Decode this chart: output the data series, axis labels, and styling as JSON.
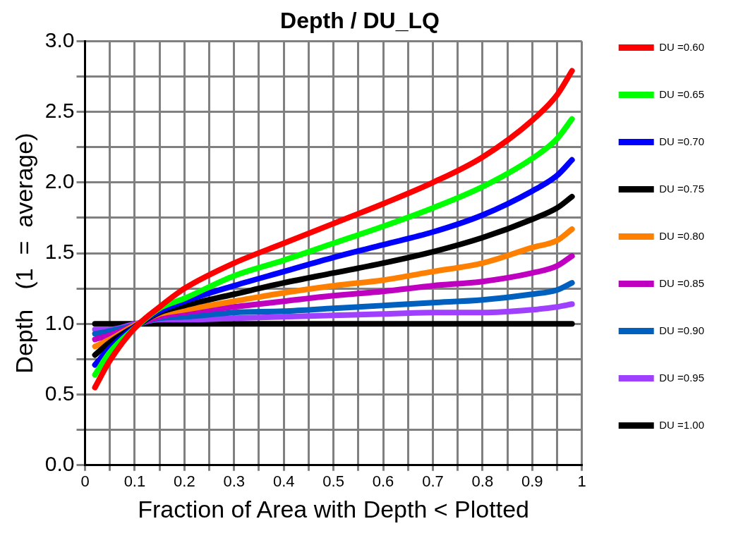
{
  "chart_data": {
    "type": "line",
    "title": "Depth / DU_LQ",
    "xlabel": "Fraction of Area with Depth < Plotted",
    "ylabel": "Depth   (1  =  average)",
    "x": [
      0.02,
      0.05,
      0.1,
      0.15,
      0.2,
      0.3,
      0.4,
      0.5,
      0.6,
      0.7,
      0.8,
      0.9,
      0.95,
      0.98
    ],
    "xlim": [
      0,
      1
    ],
    "xticks": [
      {
        "value": 0,
        "label": "0"
      },
      {
        "value": 0.05,
        "label": null
      },
      0.1,
      {
        "value": 0.15,
        "label": null
      },
      0.2,
      {
        "value": 0.25,
        "label": null
      },
      0.3,
      {
        "value": 0.35,
        "label": null
      },
      0.4,
      {
        "value": 0.45,
        "label": null
      },
      0.5,
      {
        "value": 0.55,
        "label": null
      },
      0.6,
      {
        "value": 0.65,
        "label": null
      },
      0.7,
      {
        "value": 0.75,
        "label": null
      },
      0.8,
      {
        "value": 0.85,
        "label": null
      },
      0.9,
      {
        "value": 0.95,
        "label": null
      },
      {
        "value": 1,
        "label": "1"
      }
    ],
    "ylim": [
      0,
      3
    ],
    "yticks": [
      {
        "value": 0,
        "label": "0.0"
      },
      {
        "value": 0.25,
        "label": null
      },
      0.5,
      {
        "value": 0.75,
        "label": null
      },
      {
        "value": 1,
        "label": "1.0"
      },
      {
        "value": 1.25,
        "label": null
      },
      1.5,
      {
        "value": 1.75,
        "label": null
      },
      {
        "value": 2,
        "label": "2.0"
      },
      {
        "value": 2.25,
        "label": null
      },
      2.5,
      {
        "value": 2.75,
        "label": null
      },
      {
        "value": 3,
        "label": "3.0"
      }
    ],
    "grid": true,
    "legend": "right",
    "marker": "none",
    "line_style": "solid",
    "series": [
      {
        "name": "DU =0.60",
        "color": "#ff0000",
        "values": [
          0.55,
          0.74,
          0.97,
          1.12,
          1.25,
          1.43,
          1.57,
          1.71,
          1.85,
          2.0,
          2.18,
          2.44,
          2.62,
          2.79
        ]
      },
      {
        "name": "DU =0.65",
        "color": "#00ff00",
        "values": [
          0.64,
          0.8,
          0.97,
          1.11,
          1.18,
          1.34,
          1.45,
          1.57,
          1.69,
          1.82,
          1.97,
          2.17,
          2.31,
          2.45
        ]
      },
      {
        "name": "DU =0.70",
        "color": "#0000ff",
        "values": [
          0.71,
          0.83,
          0.98,
          1.09,
          1.16,
          1.27,
          1.37,
          1.47,
          1.56,
          1.65,
          1.77,
          1.94,
          2.05,
          2.16
        ]
      },
      {
        "name": "DU =0.75",
        "color": "#000000",
        "values": [
          0.78,
          0.87,
          0.98,
          1.08,
          1.13,
          1.21,
          1.29,
          1.36,
          1.43,
          1.51,
          1.61,
          1.74,
          1.82,
          1.9
        ]
      },
      {
        "name": "DU =0.80",
        "color": "#ff8000",
        "values": [
          0.84,
          0.89,
          0.99,
          1.07,
          1.1,
          1.16,
          1.22,
          1.27,
          1.31,
          1.37,
          1.43,
          1.54,
          1.59,
          1.67
        ]
      },
      {
        "name": "DU =0.85",
        "color": "#c000c0",
        "values": [
          0.89,
          0.92,
          0.99,
          1.05,
          1.08,
          1.12,
          1.16,
          1.2,
          1.23,
          1.27,
          1.3,
          1.36,
          1.41,
          1.48
        ]
      },
      {
        "name": "DU =0.90",
        "color": "#0060c0",
        "values": [
          0.93,
          0.95,
          0.99,
          1.04,
          1.05,
          1.08,
          1.09,
          1.11,
          1.13,
          1.15,
          1.17,
          1.21,
          1.24,
          1.29
        ]
      },
      {
        "name": "DU =0.95",
        "color": "#a040ff",
        "values": [
          0.96,
          0.96,
          1.0,
          1.03,
          1.03,
          1.04,
          1.05,
          1.06,
          1.07,
          1.08,
          1.08,
          1.1,
          1.12,
          1.14
        ]
      },
      {
        "name": "DU =1.00",
        "color": "#000000",
        "values": [
          1,
          1,
          1,
          1,
          1,
          1,
          1,
          1,
          1,
          1,
          1,
          1,
          1,
          1
        ]
      }
    ]
  }
}
